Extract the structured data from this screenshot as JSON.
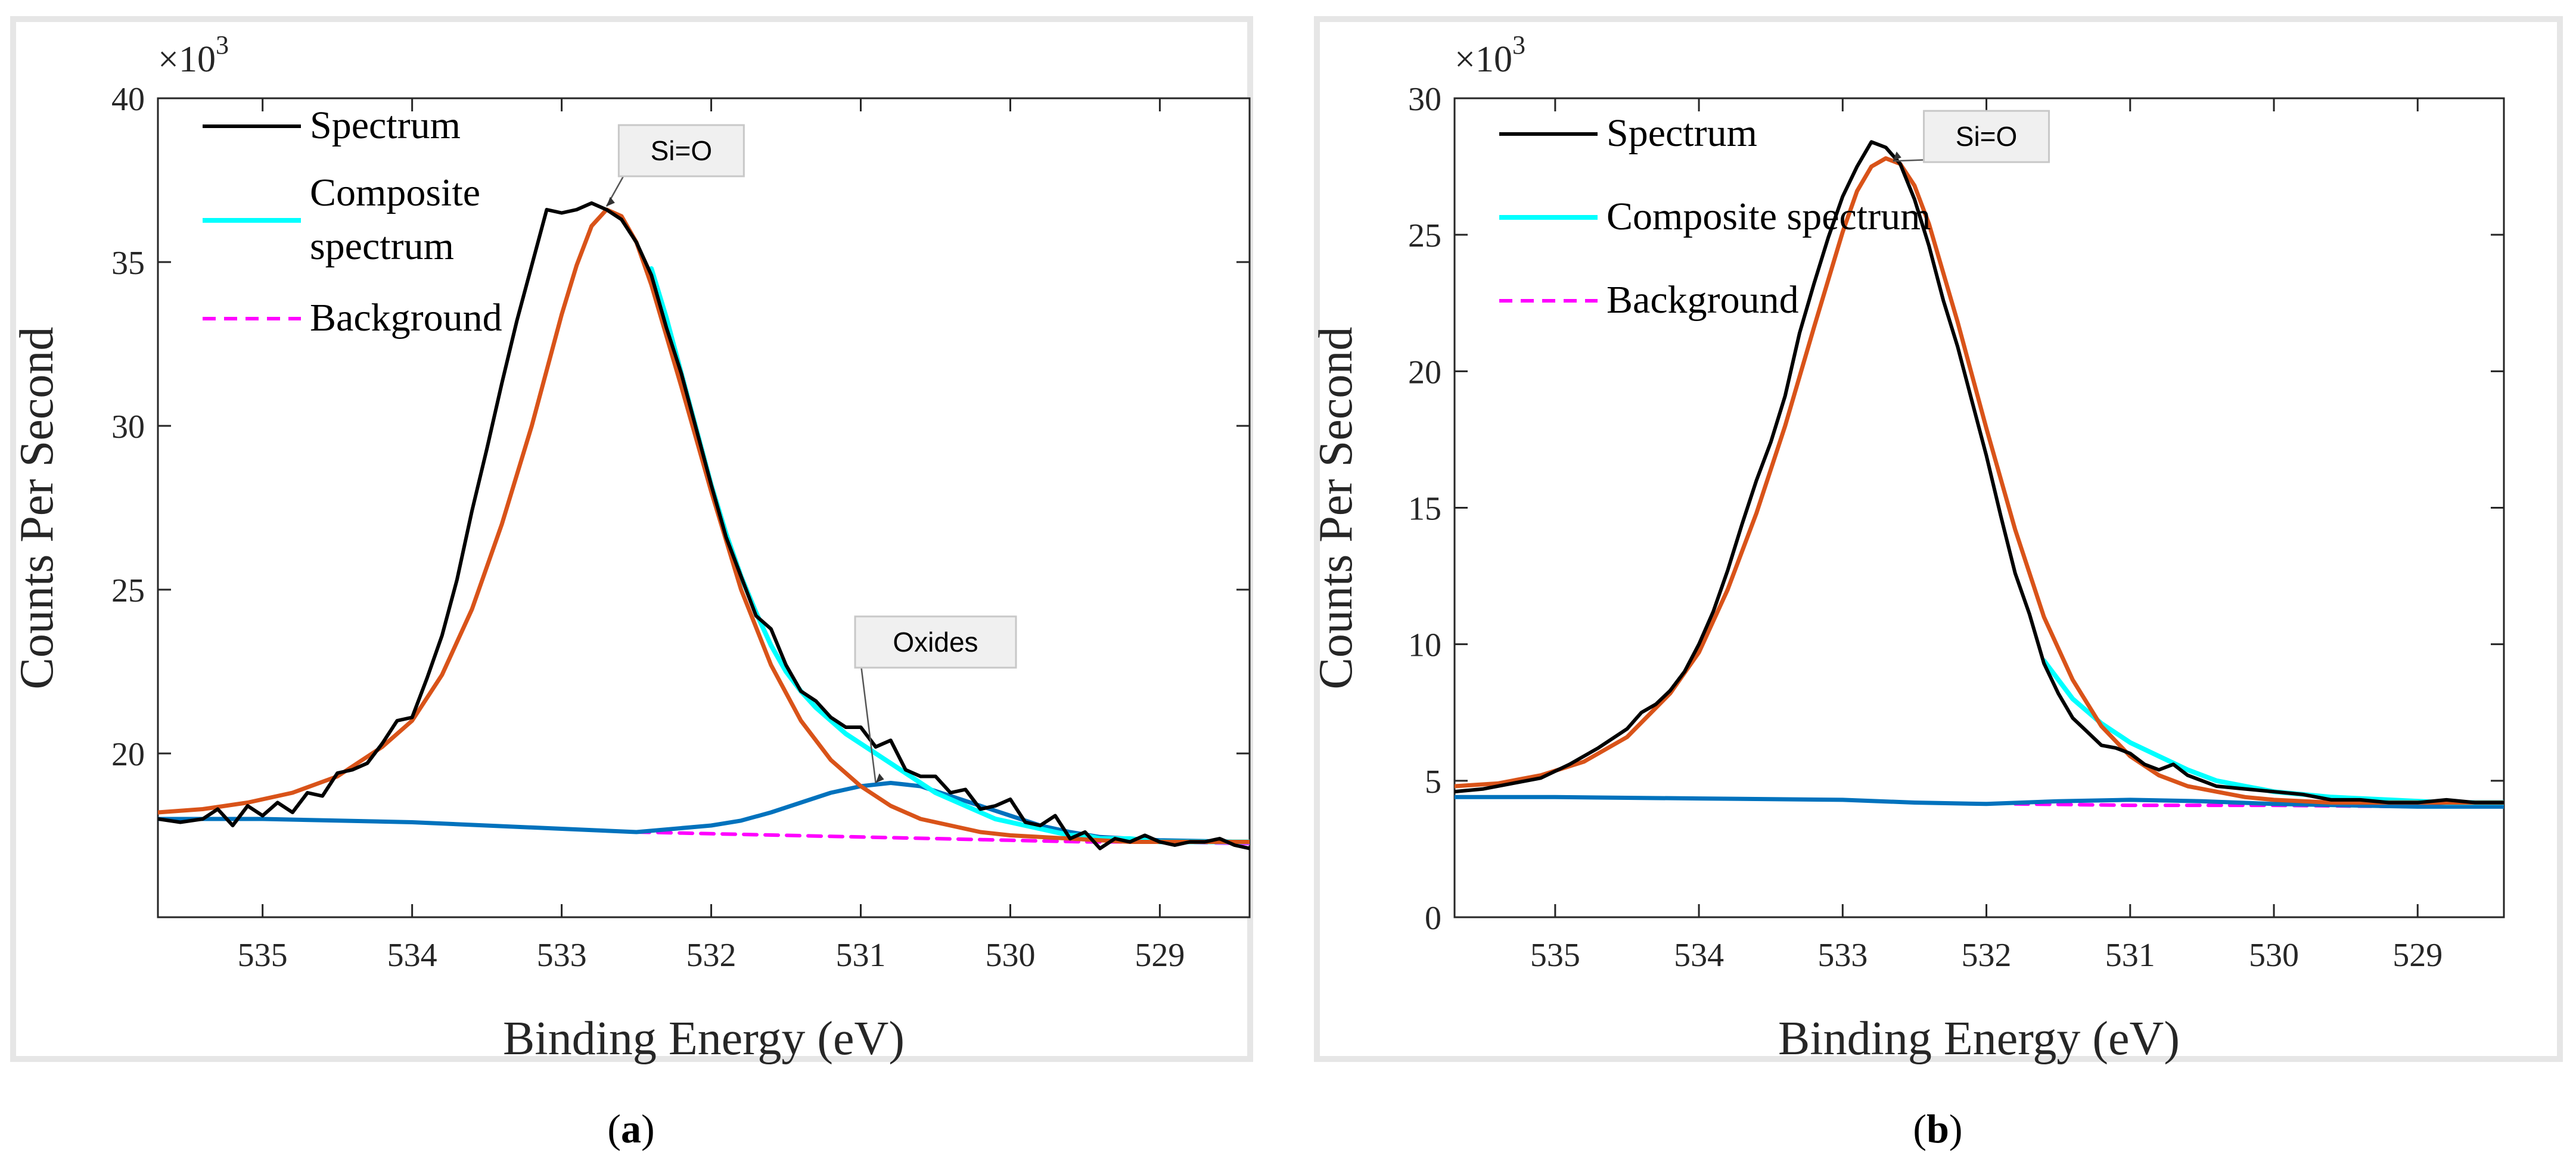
{
  "colors": {
    "spectrum": "#000000",
    "composite": "#00ffff",
    "background": "#ff00ff",
    "fit_main": "#d95319",
    "fit_secondary": "#0072bd",
    "frame": "#e6e6e6",
    "annotation_box": "#f0f0f0"
  },
  "chart_data": [
    {
      "type": "line",
      "panel": "a",
      "caption_letter": "a",
      "caption_open": "(",
      "caption_close": ")",
      "xlabel": "Binding Energy (eV)",
      "ylabel": "Counts Per Second",
      "y_exponent_label": "×10",
      "y_exponent_power": "3",
      "xlim": [
        535.7,
        528.4
      ],
      "x_reversed": true,
      "ylim": [
        15,
        40
      ],
      "xticks": [
        535,
        534,
        533,
        532,
        531,
        530,
        529
      ],
      "yticks": [
        20,
        25,
        30,
        35,
        40
      ],
      "legend": [
        "Spectrum",
        "Composite spectrum",
        "Background"
      ],
      "legend_lines": [
        [
          "Spectrum"
        ],
        [
          "Composite",
          "spectrum"
        ],
        [
          "Background"
        ]
      ],
      "legend_position": "top-left",
      "series": [
        {
          "name": "Spectrum",
          "color_key": "spectrum",
          "style": "solid",
          "x": [
            535.7,
            535.55,
            535.4,
            535.3,
            535.2,
            535.1,
            535.0,
            534.9,
            534.8,
            534.7,
            534.6,
            534.5,
            534.4,
            534.3,
            534.2,
            534.1,
            534.0,
            533.9,
            533.8,
            533.7,
            533.6,
            533.5,
            533.4,
            533.3,
            533.2,
            533.1,
            533.0,
            532.9,
            532.8,
            532.7,
            532.6,
            532.5,
            532.4,
            532.3,
            532.2,
            532.1,
            532.0,
            531.9,
            531.8,
            531.7,
            531.6,
            531.5,
            531.4,
            531.3,
            531.2,
            531.1,
            531.0,
            530.9,
            530.8,
            530.7,
            530.6,
            530.5,
            530.4,
            530.3,
            530.2,
            530.1,
            530.0,
            529.9,
            529.8,
            529.7,
            529.6,
            529.5,
            529.4,
            529.3,
            529.2,
            529.1,
            529.0,
            528.9,
            528.8,
            528.7,
            528.6,
            528.5,
            528.4
          ],
          "y": [
            18.0,
            17.9,
            18.0,
            18.3,
            17.8,
            18.4,
            18.1,
            18.5,
            18.2,
            18.8,
            18.7,
            19.4,
            19.5,
            19.7,
            20.3,
            21.0,
            21.1,
            22.3,
            23.6,
            25.3,
            27.4,
            29.3,
            31.3,
            33.2,
            34.9,
            36.6,
            36.5,
            36.6,
            36.8,
            36.6,
            36.3,
            35.6,
            34.6,
            33.0,
            31.6,
            29.9,
            28.2,
            26.6,
            25.4,
            24.2,
            23.8,
            22.7,
            21.9,
            21.6,
            21.1,
            20.8,
            20.8,
            20.2,
            20.4,
            19.5,
            19.3,
            19.3,
            18.8,
            18.9,
            18.3,
            18.4,
            18.6,
            17.9,
            17.8,
            18.1,
            17.4,
            17.6,
            17.1,
            17.4,
            17.3,
            17.5,
            17.3,
            17.2,
            17.3,
            17.3,
            17.4,
            17.2,
            17.1
          ]
        },
        {
          "name": "Composite spectrum",
          "color_key": "composite",
          "style": "solid",
          "x": [
            532.4,
            532.3,
            532.2,
            532.1,
            532.0,
            531.9,
            531.8,
            531.7,
            531.6,
            531.5,
            531.4,
            531.3,
            531.2,
            531.1,
            531.0,
            530.9,
            530.8,
            530.7,
            530.6,
            530.5,
            530.4,
            530.3,
            530.2,
            530.1,
            530.0,
            529.9,
            529.8,
            529.7,
            529.6,
            529.5,
            529.4,
            529.2,
            529.0,
            528.8,
            528.6,
            528.4
          ],
          "y": [
            34.8,
            33.3,
            31.6,
            29.9,
            28.2,
            26.7,
            25.4,
            24.3,
            23.3,
            22.5,
            21.9,
            21.4,
            21.0,
            20.6,
            20.3,
            20.0,
            19.7,
            19.4,
            19.1,
            18.8,
            18.6,
            18.4,
            18.2,
            18.0,
            17.9,
            17.8,
            17.7,
            17.6,
            17.5,
            17.5,
            17.4,
            17.4,
            17.3,
            17.3,
            17.3,
            17.3
          ]
        },
        {
          "name": "Background",
          "color_key": "background",
          "style": "dashed",
          "x": [
            532.5,
            532.0,
            531.5,
            531.0,
            530.5,
            530.0,
            529.5,
            529.0,
            528.4
          ],
          "y": [
            17.6,
            17.55,
            17.5,
            17.45,
            17.4,
            17.35,
            17.3,
            17.3,
            17.25
          ]
        },
        {
          "name": "Si=O fit",
          "color_key": "fit_main",
          "style": "solid",
          "x": [
            535.7,
            535.4,
            535.1,
            534.8,
            534.5,
            534.2,
            534.0,
            533.8,
            533.6,
            533.4,
            533.2,
            533.0,
            532.9,
            532.8,
            532.7,
            532.6,
            532.5,
            532.4,
            532.2,
            532.0,
            531.8,
            531.6,
            531.4,
            531.2,
            531.0,
            530.8,
            530.6,
            530.4,
            530.2,
            530.0,
            529.6,
            529.2,
            528.8,
            528.4
          ],
          "y": [
            18.2,
            18.3,
            18.5,
            18.8,
            19.3,
            20.2,
            21.0,
            22.4,
            24.4,
            27.0,
            30.0,
            33.4,
            34.9,
            36.1,
            36.6,
            36.4,
            35.6,
            34.3,
            31.2,
            28.0,
            25.0,
            22.7,
            21.0,
            19.8,
            19.0,
            18.4,
            18.0,
            17.8,
            17.6,
            17.5,
            17.4,
            17.3,
            17.3,
            17.3
          ]
        },
        {
          "name": "Oxides fit",
          "color_key": "fit_secondary",
          "style": "solid",
          "x": [
            535.7,
            535.0,
            534.0,
            533.0,
            532.5,
            532.0,
            531.8,
            531.6,
            531.4,
            531.2,
            531.0,
            530.8,
            530.6,
            530.4,
            530.2,
            530.0,
            529.8,
            529.6,
            529.4,
            529.0,
            528.4
          ],
          "y": [
            18.0,
            18.0,
            17.9,
            17.7,
            17.6,
            17.8,
            17.95,
            18.2,
            18.5,
            18.8,
            19.0,
            19.1,
            19.0,
            18.7,
            18.4,
            18.1,
            17.8,
            17.6,
            17.45,
            17.35,
            17.3
          ]
        }
      ],
      "annotations": [
        {
          "label": "Si=O",
          "point": [
            532.7,
            36.7
          ],
          "box_center": [
            532.2,
            38.4
          ]
        },
        {
          "label": "Oxides",
          "point": [
            530.9,
            19.1
          ],
          "box_center": [
            530.5,
            23.4
          ]
        }
      ]
    },
    {
      "type": "line",
      "panel": "b",
      "caption_letter": "b",
      "caption_open": "(",
      "caption_close": ")",
      "xlabel": "Binding Energy (eV)",
      "ylabel": "Counts Per Second",
      "y_exponent_label": "×10",
      "y_exponent_power": "3",
      "xlim": [
        535.7,
        528.4
      ],
      "x_reversed": true,
      "ylim": [
        0,
        30
      ],
      "xticks": [
        535,
        534,
        533,
        532,
        531,
        530,
        529
      ],
      "yticks": [
        0,
        5,
        10,
        15,
        20,
        25,
        30
      ],
      "legend": [
        "Spectrum",
        "Composite spectrum",
        "Background"
      ],
      "legend_lines": [
        [
          "Spectrum"
        ],
        [
          "Composite spectrum"
        ],
        [
          "Background"
        ]
      ],
      "legend_position": "top-left",
      "series": [
        {
          "name": "Spectrum",
          "color_key": "spectrum",
          "style": "solid",
          "x": [
            535.7,
            535.5,
            535.3,
            535.1,
            534.9,
            534.7,
            534.5,
            534.4,
            534.3,
            534.2,
            534.1,
            534.0,
            533.9,
            533.8,
            533.7,
            533.6,
            533.5,
            533.4,
            533.3,
            533.2,
            533.1,
            533.0,
            532.9,
            532.8,
            532.7,
            532.6,
            532.5,
            532.4,
            532.3,
            532.2,
            532.1,
            532.0,
            531.9,
            531.8,
            531.7,
            531.6,
            531.5,
            531.4,
            531.3,
            531.2,
            531.1,
            531.0,
            530.9,
            530.8,
            530.7,
            530.6,
            530.5,
            530.4,
            530.2,
            530.0,
            529.8,
            529.6,
            529.4,
            529.2,
            529.0,
            528.8,
            528.6,
            528.4
          ],
          "y": [
            4.6,
            4.7,
            4.9,
            5.1,
            5.6,
            6.2,
            6.9,
            7.5,
            7.8,
            8.3,
            9.0,
            10.0,
            11.2,
            12.7,
            14.4,
            16.0,
            17.4,
            19.1,
            21.4,
            23.2,
            24.9,
            26.4,
            27.5,
            28.4,
            28.2,
            27.6,
            26.3,
            24.6,
            22.6,
            20.9,
            18.9,
            16.9,
            14.7,
            12.6,
            11.1,
            9.3,
            8.2,
            7.3,
            6.8,
            6.3,
            6.2,
            6.0,
            5.6,
            5.4,
            5.6,
            5.2,
            5.0,
            4.8,
            4.7,
            4.6,
            4.5,
            4.3,
            4.3,
            4.2,
            4.2,
            4.3,
            4.2,
            4.2
          ]
        },
        {
          "name": "Composite spectrum",
          "color_key": "composite",
          "style": "solid",
          "x": [
            531.6,
            531.4,
            531.2,
            531.0,
            530.8,
            530.6,
            530.4,
            530.2,
            530.0,
            529.6,
            529.2,
            528.8,
            528.4
          ],
          "y": [
            9.4,
            8.0,
            7.1,
            6.4,
            5.9,
            5.4,
            5.0,
            4.8,
            4.6,
            4.4,
            4.3,
            4.2,
            4.2
          ]
        },
        {
          "name": "Background",
          "color_key": "background",
          "style": "dashed",
          "x": [
            531.8,
            531.0,
            530.0,
            529.0,
            528.4
          ],
          "y": [
            4.15,
            4.1,
            4.1,
            4.05,
            4.05
          ]
        },
        {
          "name": "Si=O fit",
          "color_key": "fit_main",
          "style": "solid",
          "x": [
            535.7,
            535.4,
            535.1,
            534.8,
            534.5,
            534.2,
            534.0,
            533.8,
            533.6,
            533.4,
            533.2,
            533.0,
            532.9,
            532.8,
            532.7,
            532.6,
            532.5,
            532.4,
            532.2,
            532.0,
            531.8,
            531.6,
            531.4,
            531.2,
            531.0,
            530.8,
            530.6,
            530.4,
            530.2,
            530.0,
            529.6,
            529.2,
            528.8,
            528.4
          ],
          "y": [
            4.8,
            4.9,
            5.2,
            5.7,
            6.6,
            8.2,
            9.7,
            12.0,
            14.8,
            18.0,
            21.6,
            25.1,
            26.6,
            27.5,
            27.8,
            27.6,
            26.8,
            25.4,
            21.8,
            17.9,
            14.2,
            11.0,
            8.7,
            7.0,
            5.9,
            5.2,
            4.8,
            4.6,
            4.4,
            4.3,
            4.2,
            4.2,
            4.2,
            4.2
          ]
        },
        {
          "name": "Oxides fit",
          "color_key": "fit_secondary",
          "style": "solid",
          "x": [
            535.7,
            535.0,
            534.0,
            533.0,
            532.5,
            532.0,
            531.5,
            531.0,
            530.5,
            530.0,
            529.5,
            529.0,
            528.4
          ],
          "y": [
            4.4,
            4.4,
            4.35,
            4.3,
            4.2,
            4.15,
            4.25,
            4.3,
            4.25,
            4.15,
            4.1,
            4.05,
            4.05
          ]
        }
      ],
      "annotations": [
        {
          "label": "Si=O",
          "point": [
            532.65,
            27.7
          ],
          "box_center": [
            532.0,
            28.6
          ]
        }
      ]
    }
  ]
}
